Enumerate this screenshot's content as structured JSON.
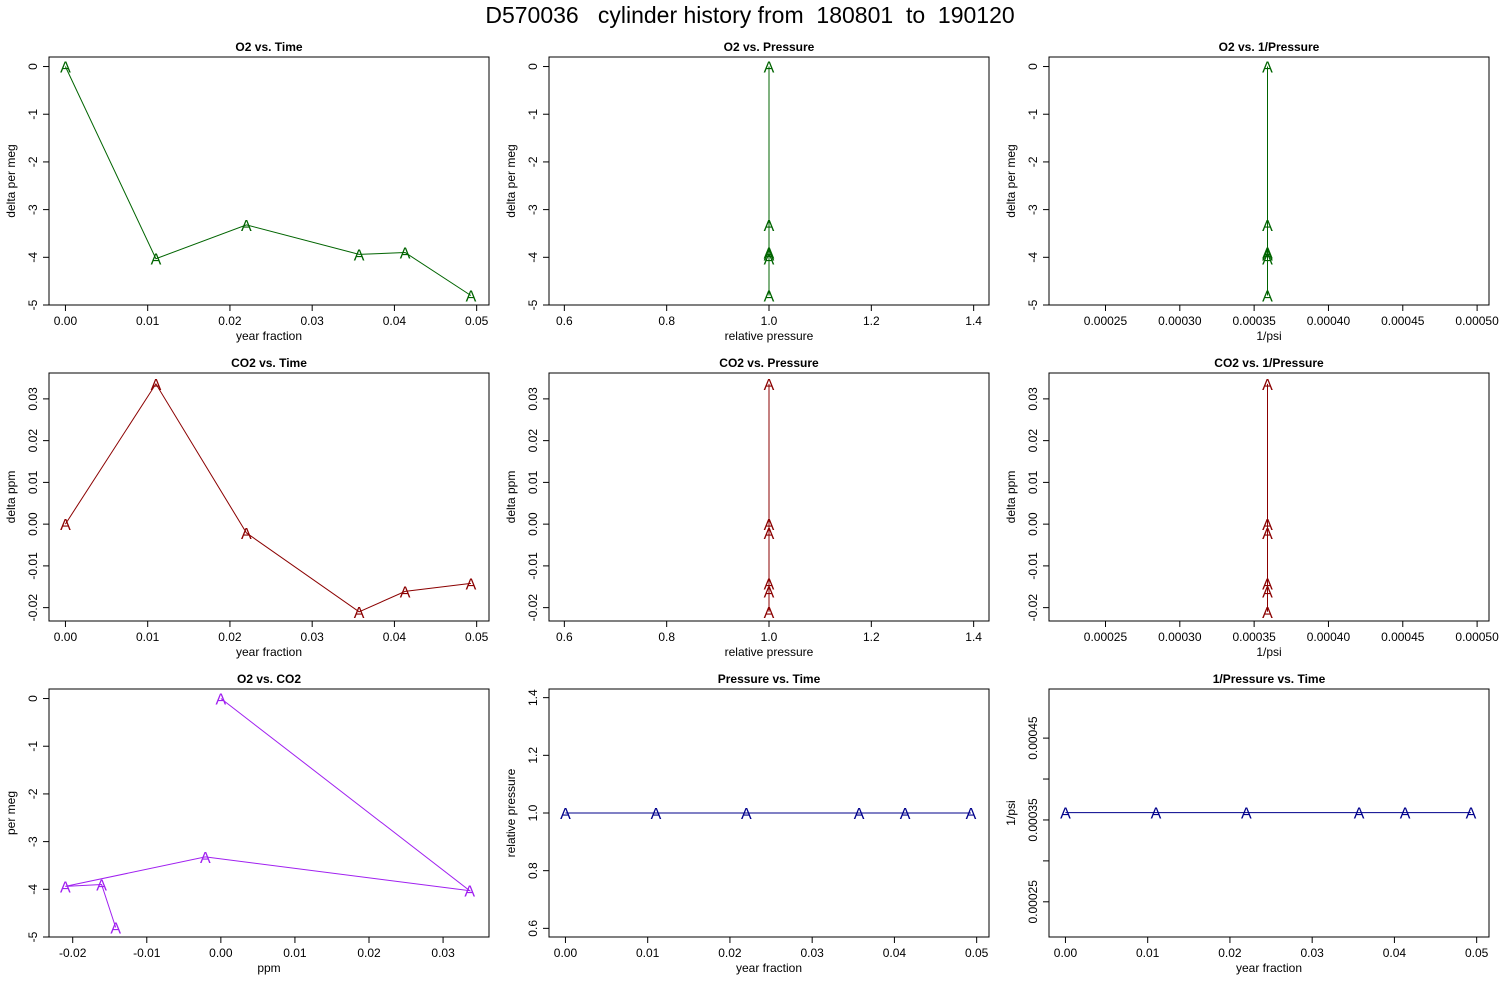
{
  "figure": {
    "title": "D570036   cylinder history from  180801  to  190120"
  },
  "colors": {
    "o2": "#006400",
    "co2": "#8b0000",
    "o2_co2": "#a020f0",
    "pressure": "#00008b",
    "axis": "#000000"
  },
  "chart_data": [
    {
      "type": "line",
      "title": "O2 vs. Time",
      "xlabel": "year fraction",
      "ylabel": "delta per meg",
      "xlim": [
        -0.002,
        0.0515
      ],
      "ylim": [
        -5,
        0.2
      ],
      "xticks": [
        0,
        0.01,
        0.02,
        0.03,
        0.04,
        0.05
      ],
      "xtick_labels": [
        "0.00",
        "0.01",
        "0.02",
        "0.03",
        "0.04",
        "0.05"
      ],
      "yticks": [
        0,
        -1,
        -2,
        -3,
        -4,
        -5
      ],
      "ytick_labels": [
        "0",
        "-1",
        "-2",
        "-3",
        "-4",
        "-5"
      ],
      "marker": "A",
      "color": "#006400",
      "x": [
        0.0,
        0.011,
        0.022,
        0.0357,
        0.0413,
        0.0493
      ],
      "y": [
        0.0,
        -4.03,
        -3.32,
        -3.94,
        -3.9,
        -4.8
      ]
    },
    {
      "type": "line",
      "title": "O2 vs. Pressure",
      "xlabel": "relative pressure",
      "ylabel": "delta per meg",
      "xlim": [
        0.57,
        1.43
      ],
      "ylim": [
        -5,
        0.2
      ],
      "xticks": [
        0.6,
        0.8,
        1.0,
        1.2,
        1.4
      ],
      "xtick_labels": [
        "0.6",
        "0.8",
        "1.0",
        "1.2",
        "1.4"
      ],
      "yticks": [
        0,
        -1,
        -2,
        -3,
        -4,
        -5
      ],
      "ytick_labels": [
        "0",
        "-1",
        "-2",
        "-3",
        "-4",
        "-5"
      ],
      "marker": "A",
      "color": "#006400",
      "x": [
        1.0,
        1.0,
        1.0,
        1.0,
        1.0,
        1.0
      ],
      "y": [
        0.0,
        -4.03,
        -3.32,
        -3.94,
        -3.9,
        -4.8
      ]
    },
    {
      "type": "line",
      "title": "O2 vs. 1/Pressure",
      "xlabel": "1/psi",
      "ylabel": "delta per meg",
      "xlim": [
        0.000212,
        0.000508
      ],
      "ylim": [
        -5,
        0.2
      ],
      "xticks": [
        0.00025,
        0.0003,
        0.00035,
        0.0004,
        0.00045,
        0.0005
      ],
      "xtick_labels": [
        "0.00025",
        "0.00030",
        "0.00035",
        "0.00040",
        "0.00045",
        "0.00050"
      ],
      "yticks": [
        0,
        -1,
        -2,
        -3,
        -4,
        -5
      ],
      "ytick_labels": [
        "0",
        "-1",
        "-2",
        "-3",
        "-4",
        "-5"
      ],
      "marker": "A",
      "color": "#006400",
      "x": [
        0.000359,
        0.000359,
        0.000359,
        0.000359,
        0.000359,
        0.000359
      ],
      "y": [
        0.0,
        -4.03,
        -3.32,
        -3.94,
        -3.9,
        -4.8
      ]
    },
    {
      "type": "line",
      "title": "CO2 vs. Time",
      "xlabel": "year fraction",
      "ylabel": "delta ppm",
      "xlim": [
        -0.002,
        0.0515
      ],
      "ylim": [
        -0.0232,
        0.0362
      ],
      "xticks": [
        0,
        0.01,
        0.02,
        0.03,
        0.04,
        0.05
      ],
      "xtick_labels": [
        "0.00",
        "0.01",
        "0.02",
        "0.03",
        "0.04",
        "0.05"
      ],
      "yticks": [
        0.03,
        0.02,
        0.01,
        0.0,
        -0.01,
        -0.02
      ],
      "ytick_labels": [
        "0.03",
        "0.02",
        "0.01",
        "0.00",
        "-0.01",
        "-0.02"
      ],
      "marker": "A",
      "color": "#8b0000",
      "x": [
        0.0,
        0.011,
        0.022,
        0.0357,
        0.0413,
        0.0493
      ],
      "y": [
        0.0,
        0.0336,
        -0.0021,
        -0.021,
        -0.0161,
        -0.0142
      ]
    },
    {
      "type": "line",
      "title": "CO2 vs. Pressure",
      "xlabel": "relative pressure",
      "ylabel": "delta ppm",
      "xlim": [
        0.57,
        1.43
      ],
      "ylim": [
        -0.0232,
        0.0362
      ],
      "xticks": [
        0.6,
        0.8,
        1.0,
        1.2,
        1.4
      ],
      "xtick_labels": [
        "0.6",
        "0.8",
        "1.0",
        "1.2",
        "1.4"
      ],
      "yticks": [
        0.03,
        0.02,
        0.01,
        0.0,
        -0.01,
        -0.02
      ],
      "ytick_labels": [
        "0.03",
        "0.02",
        "0.01",
        "0.00",
        "-0.01",
        "-0.02"
      ],
      "marker": "A",
      "color": "#8b0000",
      "x": [
        1.0,
        1.0,
        1.0,
        1.0,
        1.0,
        1.0
      ],
      "y": [
        0.0,
        0.0336,
        -0.0021,
        -0.021,
        -0.0161,
        -0.0142
      ]
    },
    {
      "type": "line",
      "title": "CO2 vs. 1/Pressure",
      "xlabel": "1/psi",
      "ylabel": "delta ppm",
      "xlim": [
        0.000212,
        0.000508
      ],
      "ylim": [
        -0.0232,
        0.0362
      ],
      "xticks": [
        0.00025,
        0.0003,
        0.00035,
        0.0004,
        0.00045,
        0.0005
      ],
      "xtick_labels": [
        "0.00025",
        "0.00030",
        "0.00035",
        "0.00040",
        "0.00045",
        "0.00050"
      ],
      "yticks": [
        0.03,
        0.02,
        0.01,
        0.0,
        -0.01,
        -0.02
      ],
      "ytick_labels": [
        "0.03",
        "0.02",
        "0.01",
        "0.00",
        "-0.01",
        "-0.02"
      ],
      "marker": "A",
      "color": "#8b0000",
      "x": [
        0.000359,
        0.000359,
        0.000359,
        0.000359,
        0.000359,
        0.000359
      ],
      "y": [
        0.0,
        0.0336,
        -0.0021,
        -0.021,
        -0.0161,
        -0.0142
      ]
    },
    {
      "type": "line",
      "title": "O2 vs. CO2",
      "xlabel": "ppm",
      "ylabel": "per meg",
      "xlim": [
        -0.0232,
        0.0362
      ],
      "ylim": [
        -5,
        0.2
      ],
      "xticks": [
        -0.02,
        -0.01,
        0.0,
        0.01,
        0.02,
        0.03
      ],
      "xtick_labels": [
        "-0.02",
        "-0.01",
        "0.00",
        "0.01",
        "0.02",
        "0.03"
      ],
      "yticks": [
        0,
        -1,
        -2,
        -3,
        -4,
        -5
      ],
      "ytick_labels": [
        "0",
        "-1",
        "-2",
        "-3",
        "-4",
        "-5"
      ],
      "marker": "A",
      "color": "#a020f0",
      "x": [
        0.0,
        0.0336,
        -0.0021,
        -0.021,
        -0.0161,
        -0.0142
      ],
      "y": [
        0.0,
        -4.03,
        -3.32,
        -3.94,
        -3.9,
        -4.8
      ]
    },
    {
      "type": "line",
      "title": "Pressure vs. Time",
      "xlabel": "year fraction",
      "ylabel": "relative pressure",
      "xlim": [
        -0.002,
        0.0515
      ],
      "ylim": [
        0.57,
        1.43
      ],
      "xticks": [
        0,
        0.01,
        0.02,
        0.03,
        0.04,
        0.05
      ],
      "xtick_labels": [
        "0.00",
        "0.01",
        "0.02",
        "0.03",
        "0.04",
        "0.05"
      ],
      "yticks": [
        1.4,
        1.2,
        1.0,
        0.8,
        0.6
      ],
      "ytick_labels": [
        "1.4",
        "1.2",
        "1.0",
        "0.8",
        "0.6"
      ],
      "marker": "A",
      "color": "#00008b",
      "x": [
        0.0,
        0.011,
        0.022,
        0.0357,
        0.0413,
        0.0493
      ],
      "y": [
        1.0,
        1.0,
        1.0,
        1.0,
        1.0,
        1.0
      ]
    },
    {
      "type": "line",
      "title": "1/Pressure vs. Time",
      "xlabel": "year fraction",
      "ylabel": "1/psi",
      "xlim": [
        -0.002,
        0.0515
      ],
      "ylim": [
        0.000207,
        0.00051
      ],
      "xticks": [
        0,
        0.01,
        0.02,
        0.03,
        0.04,
        0.05
      ],
      "xtick_labels": [
        "0.00",
        "0.01",
        "0.02",
        "0.03",
        "0.04",
        "0.05"
      ],
      "yticks": [
        0.00045,
        0.0004,
        0.00035,
        0.0003,
        0.00025
      ],
      "ytick_labels": [
        "0.00045",
        "",
        "0.00035",
        "",
        "0.00025"
      ],
      "marker": "A",
      "color": "#00008b",
      "x": [
        0.0,
        0.011,
        0.022,
        0.0357,
        0.0413,
        0.0493
      ],
      "y": [
        0.000359,
        0.000359,
        0.000359,
        0.000359,
        0.000359,
        0.000359
      ]
    }
  ]
}
